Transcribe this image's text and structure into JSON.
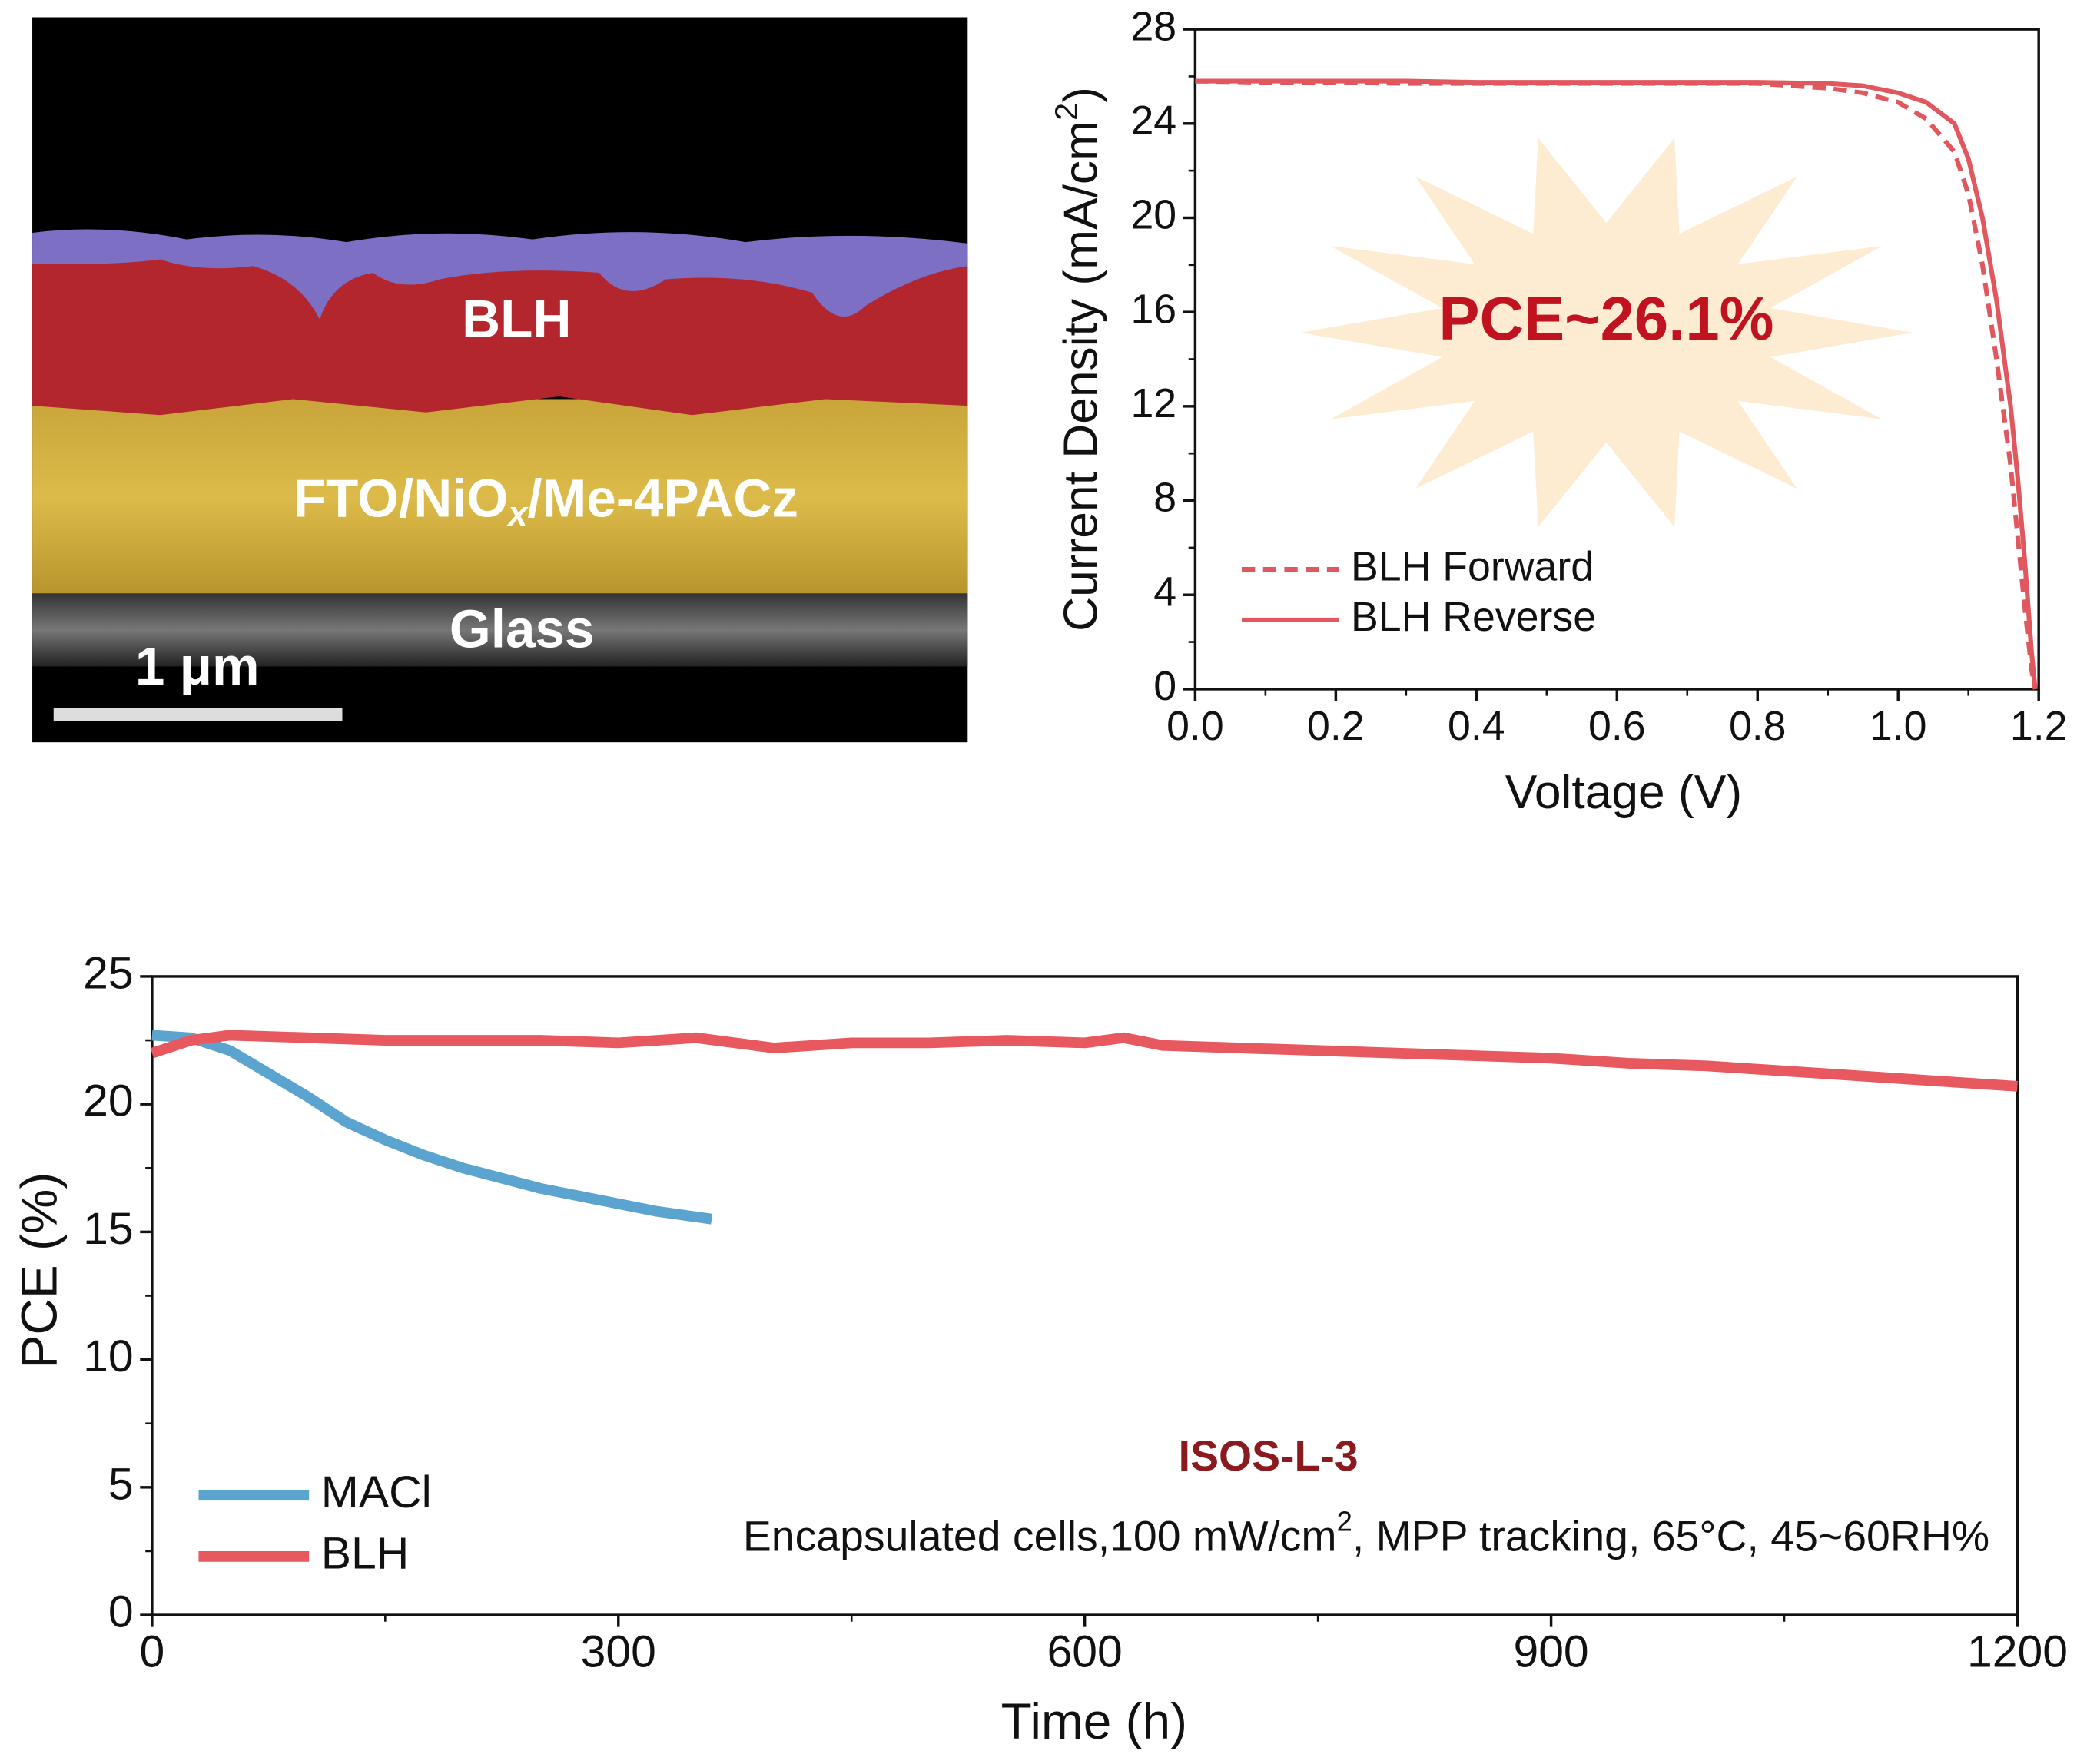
{
  "sem_image": {
    "top_layer": "BLH",
    "middle_layer": {
      "main": "FTO/NiO",
      "sub": "x",
      "end": "/Me-4PACz"
    },
    "bottom_layer": "Glass",
    "scale_bar": "1 μm"
  },
  "chart_data": [
    {
      "type": "line",
      "xlabel": "Voltage (V)",
      "ylabel": {
        "main": "Current Density (mA/cm",
        "sup": "2",
        "end": ")"
      },
      "annotation": "PCE~26.1%",
      "xlim": [
        0,
        1.2
      ],
      "xticks": [
        {
          "value": 0,
          "label": "0.0"
        },
        0.2,
        0.4,
        0.6,
        0.8,
        {
          "value": 1,
          "label": "1.0"
        },
        1.2
      ],
      "ylim": [
        0,
        28
      ],
      "yticks": [
        0,
        4,
        8,
        12,
        16,
        20,
        24,
        28
      ],
      "legend": "lower left",
      "series": [
        {
          "name": "BLH Forward",
          "color": "#e0575e",
          "dashed": true,
          "x": [
            0,
            0.1,
            0.2,
            0.3,
            0.4,
            0.5,
            0.6,
            0.7,
            0.8,
            0.9,
            0.95,
            1.0,
            1.04,
            1.08,
            1.1,
            1.12,
            1.14,
            1.16,
            1.17,
            1.18,
            1.19,
            1.195
          ],
          "values": [
            25.8,
            25.75,
            25.75,
            25.7,
            25.7,
            25.7,
            25.7,
            25.7,
            25.7,
            25.5,
            25.3,
            24.9,
            24.2,
            22.8,
            21,
            18,
            14,
            9.5,
            6.5,
            3.5,
            0.8,
            0
          ]
        },
        {
          "name": "BLH Reverse",
          "color": "#e0575e",
          "dashed": false,
          "x": [
            0,
            0.1,
            0.2,
            0.3,
            0.4,
            0.5,
            0.6,
            0.7,
            0.8,
            0.9,
            0.95,
            1.0,
            1.04,
            1.08,
            1.1,
            1.12,
            1.14,
            1.16,
            1.17,
            1.18,
            1.19,
            1.195
          ],
          "values": [
            25.8,
            25.8,
            25.8,
            25.8,
            25.75,
            25.75,
            25.75,
            25.75,
            25.75,
            25.7,
            25.6,
            25.3,
            24.9,
            24,
            22.5,
            20,
            16.5,
            12,
            9,
            5.5,
            1.5,
            0
          ]
        }
      ]
    },
    {
      "type": "line",
      "xlabel": "Time (h)",
      "ylabel": "PCE (%)",
      "annotation_title": "ISOS-L-3",
      "annotation": {
        "main": "Encapsulated cells,100 mW/cm",
        "sup": "2",
        "end": ", MPP tracking, 65°C, 45~60RH%"
      },
      "xlim": [
        0,
        1200
      ],
      "xticks": [
        0,
        300,
        600,
        900,
        1200
      ],
      "ylim": [
        0,
        25
      ],
      "yticks": [
        0,
        5,
        10,
        15,
        20,
        25
      ],
      "legend": "lower left",
      "series": [
        {
          "name": "MACl",
          "color": "#5ba4cf",
          "dashed": false,
          "x": [
            0,
            25,
            50,
            75,
            100,
            125,
            150,
            175,
            200,
            225,
            250,
            275,
            300,
            325,
            360
          ],
          "values": [
            22.7,
            22.6,
            22.1,
            21.2,
            20.3,
            19.3,
            18.6,
            18.0,
            17.5,
            17.1,
            16.7,
            16.4,
            16.1,
            15.8,
            15.5
          ]
        },
        {
          "name": "BLH",
          "color": "#e8585f",
          "dashed": false,
          "x": [
            0,
            25,
            50,
            100,
            150,
            200,
            250,
            300,
            350,
            400,
            450,
            500,
            550,
            600,
            625,
            650,
            700,
            750,
            800,
            850,
            900,
            950,
            1000,
            1050,
            1100,
            1150,
            1200
          ],
          "values": [
            22.0,
            22.5,
            22.7,
            22.6,
            22.5,
            22.5,
            22.5,
            22.4,
            22.6,
            22.2,
            22.4,
            22.4,
            22.5,
            22.4,
            22.6,
            22.3,
            22.2,
            22.1,
            22.0,
            21.9,
            21.8,
            21.6,
            21.5,
            21.3,
            21.1,
            20.9,
            20.7
          ]
        }
      ]
    }
  ]
}
